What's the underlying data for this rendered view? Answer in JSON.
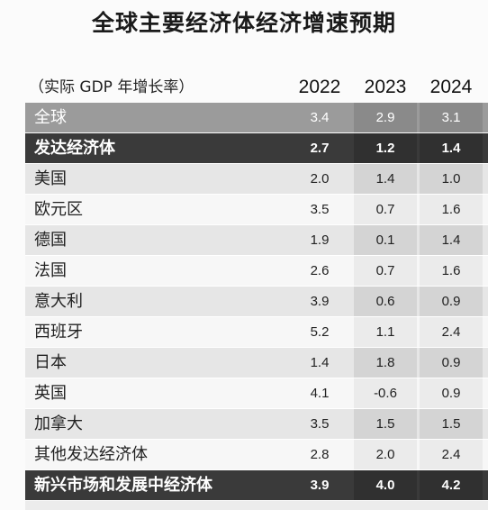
{
  "title": "全球主要经济体经济增速预期",
  "unit_label": "（实际 GDP 年增长率）",
  "years": [
    "2022",
    "2023",
    "2024"
  ],
  "rows": [
    {
      "name": "全球",
      "values": [
        "3.4",
        "2.9",
        "3.1"
      ]
    },
    {
      "name": "发达经济体",
      "values": [
        "2.7",
        "1.2",
        "1.4"
      ]
    },
    {
      "name": "美国",
      "values": [
        "2.0",
        "1.4",
        "1.0"
      ]
    },
    {
      "name": "欧元区",
      "values": [
        "3.5",
        "0.7",
        "1.6"
      ]
    },
    {
      "name": "德国",
      "values": [
        "1.9",
        "0.1",
        "1.4"
      ]
    },
    {
      "name": "法国",
      "values": [
        "2.6",
        "0.7",
        "1.6"
      ]
    },
    {
      "name": "意大利",
      "values": [
        "3.9",
        "0.6",
        "0.9"
      ]
    },
    {
      "name": "西班牙",
      "values": [
        "5.2",
        "1.1",
        "2.4"
      ]
    },
    {
      "name": "日本",
      "values": [
        "1.4",
        "1.8",
        "0.9"
      ]
    },
    {
      "name": "英国",
      "values": [
        "4.1",
        "-0.6",
        "0.9"
      ]
    },
    {
      "name": "加拿大",
      "values": [
        "3.5",
        "1.5",
        "1.5"
      ]
    },
    {
      "name": "其他发达经济体",
      "values": [
        "2.8",
        "2.0",
        "2.4"
      ]
    },
    {
      "name": "新兴市场和发展中经济体",
      "values": [
        "3.9",
        "4.0",
        "4.2"
      ]
    }
  ]
}
